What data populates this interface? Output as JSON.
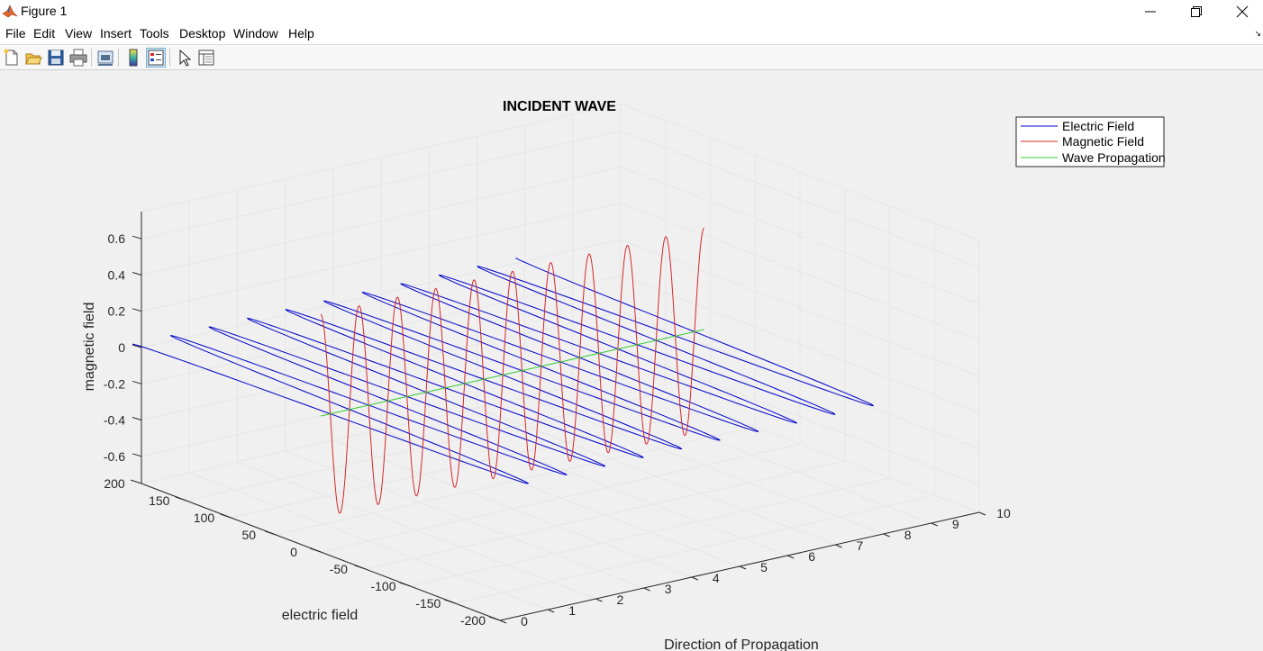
{
  "window": {
    "title": "Figure 1"
  },
  "menu": [
    "File",
    "Edit",
    "View",
    "Insert",
    "Tools",
    "Desktop",
    "Window",
    "Help"
  ],
  "toolbar": {
    "buttons": [
      {
        "icon": "new-figure-icon"
      },
      {
        "icon": "open-file-icon"
      },
      {
        "icon": "save-icon"
      },
      {
        "icon": "print-icon"
      },
      {
        "icon": "link-plot-icon"
      },
      {
        "icon": "insert-colorbar-icon"
      },
      {
        "icon": "insert-legend-icon",
        "active": true
      },
      {
        "icon": "edit-plot-icon"
      },
      {
        "icon": "property-inspector-icon"
      }
    ]
  },
  "colors": {
    "electric": "#0000cc",
    "magnetic": "#d62728",
    "propagation": "#33cc33",
    "grid": "#e6e6e6",
    "axes": "#262626"
  },
  "chart_data": {
    "type": "line",
    "plot3d": true,
    "title": "INCIDENT WAVE",
    "xlabel": "Direction of Propagation",
    "ylabel": "electric field",
    "zlabel": "magnetic field",
    "x_ticks": [
      "0",
      "1",
      "2",
      "3",
      "4",
      "5",
      "6",
      "7",
      "8",
      "9",
      "10"
    ],
    "y_ticks": [
      "-200",
      "-150",
      "-100",
      "-50",
      "0",
      "50",
      "100",
      "150",
      "200"
    ],
    "z_ticks": [
      "-0.6",
      "-0.4",
      "-0.2",
      "0",
      "0.2",
      "0.4",
      "0.6"
    ],
    "xlim": [
      0,
      10
    ],
    "ylim": [
      -200,
      200
    ],
    "zlim": [
      -0.75,
      0.75
    ],
    "grid": true,
    "legend_position": "top-right",
    "x_range": [
      0,
      8
    ],
    "cycles": 10,
    "series": [
      {
        "name": "Electric Field",
        "axis": "y",
        "amplitude": 210
      },
      {
        "name": "Magnetic Field",
        "axis": "z",
        "amplitude": 0.56
      },
      {
        "name": "Wave Propagation",
        "axis": "x",
        "amplitude": 0
      }
    ]
  }
}
